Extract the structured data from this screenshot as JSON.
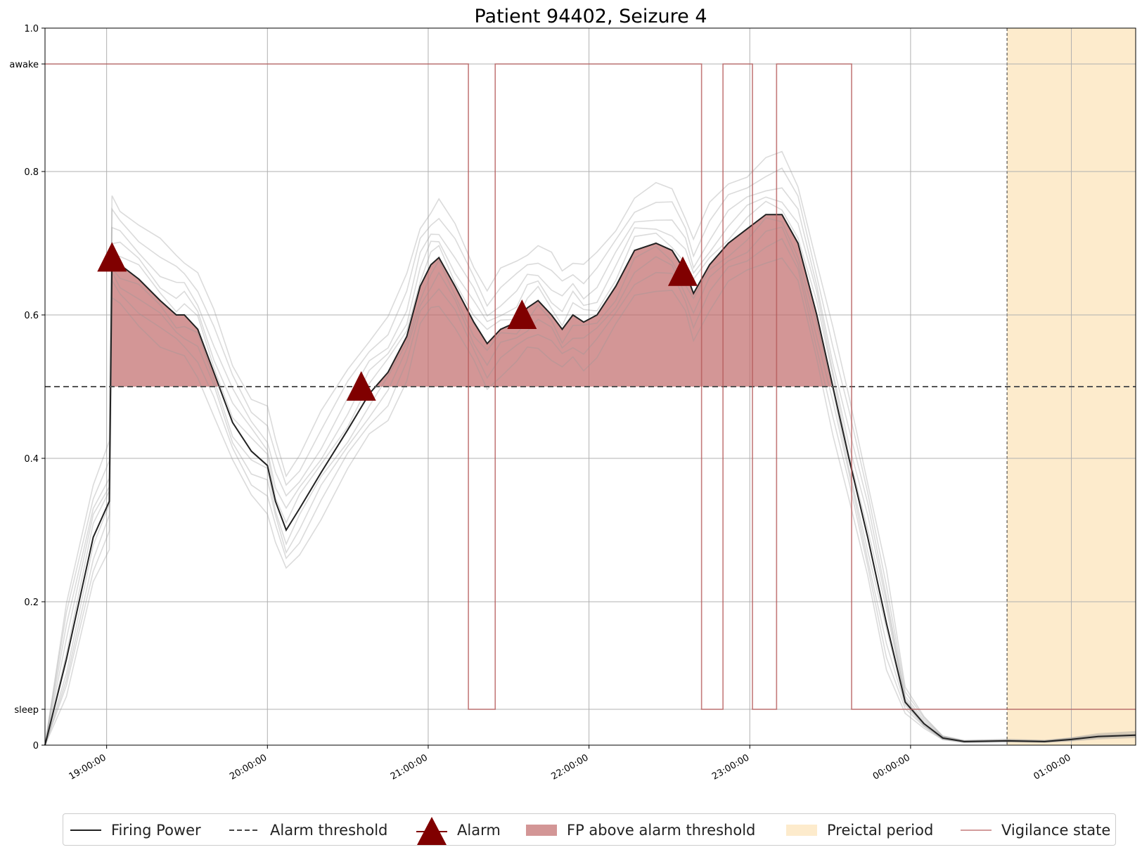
{
  "chart_data": {
    "type": "line",
    "title": "Patient 94402, Seizure 4",
    "xlabel": "",
    "ylabel": "",
    "x_start": "18:37:00",
    "x_end": "01:24:00",
    "x_ticks": [
      "19:00:00",
      "20:00:00",
      "21:00:00",
      "22:00:00",
      "23:00:00",
      "00:00:00",
      "01:00:00"
    ],
    "ylim": [
      0,
      1.0
    ],
    "y_ticks": [
      {
        "value": 0,
        "label": "0"
      },
      {
        "value": 0.2,
        "label": "0.2"
      },
      {
        "value": 0.4,
        "label": "0.4"
      },
      {
        "value": 0.6,
        "label": "0.6"
      },
      {
        "value": 0.8,
        "label": "0.8"
      },
      {
        "value": 1.0,
        "label": "1.0"
      }
    ],
    "y_state_labels": [
      {
        "value": 0.95,
        "label": "awake"
      },
      {
        "value": 0.05,
        "label": "sleep"
      }
    ],
    "grid": true,
    "legend_position": "bottom",
    "alarm_threshold": 0.5,
    "preictal_period": {
      "start": "00:36:00",
      "end": "01:24:00"
    },
    "firing_power": [
      [
        "18:37:00",
        0.0
      ],
      [
        "18:45:00",
        0.12
      ],
      [
        "18:55:00",
        0.29
      ],
      [
        "19:01:00",
        0.34
      ],
      [
        "19:02:00",
        0.68
      ],
      [
        "19:05:00",
        0.67
      ],
      [
        "19:12:00",
        0.65
      ],
      [
        "19:20:00",
        0.62
      ],
      [
        "19:26:00",
        0.6
      ],
      [
        "19:29:00",
        0.6
      ],
      [
        "19:34:00",
        0.58
      ],
      [
        "19:40:00",
        0.52
      ],
      [
        "19:47:00",
        0.45
      ],
      [
        "19:54:00",
        0.41
      ],
      [
        "20:00:00",
        0.39
      ],
      [
        "20:03:00",
        0.34
      ],
      [
        "20:07:00",
        0.3
      ],
      [
        "20:12:00",
        0.33
      ],
      [
        "20:20:00",
        0.38
      ],
      [
        "20:30:00",
        0.44
      ],
      [
        "20:38:00",
        0.49
      ],
      [
        "20:45:00",
        0.52
      ],
      [
        "20:52:00",
        0.57
      ],
      [
        "20:57:00",
        0.64
      ],
      [
        "21:01:00",
        0.67
      ],
      [
        "21:04:00",
        0.68
      ],
      [
        "21:10:00",
        0.64
      ],
      [
        "21:17:00",
        0.59
      ],
      [
        "21:22:00",
        0.56
      ],
      [
        "21:27:00",
        0.58
      ],
      [
        "21:33:00",
        0.59
      ],
      [
        "21:37:00",
        0.61
      ],
      [
        "21:41:00",
        0.62
      ],
      [
        "21:46:00",
        0.6
      ],
      [
        "21:50:00",
        0.58
      ],
      [
        "21:54:00",
        0.6
      ],
      [
        "21:58:00",
        0.59
      ],
      [
        "22:03:00",
        0.6
      ],
      [
        "22:10:00",
        0.64
      ],
      [
        "22:17:00",
        0.69
      ],
      [
        "22:25:00",
        0.7
      ],
      [
        "22:31:00",
        0.69
      ],
      [
        "22:36:00",
        0.66
      ],
      [
        "22:39:00",
        0.63
      ],
      [
        "22:45:00",
        0.67
      ],
      [
        "22:52:00",
        0.7
      ],
      [
        "22:59:00",
        0.72
      ],
      [
        "23:06:00",
        0.74
      ],
      [
        "23:12:00",
        0.74
      ],
      [
        "23:18:00",
        0.7
      ],
      [
        "23:25:00",
        0.6
      ],
      [
        "23:31:00",
        0.5
      ],
      [
        "23:37:00",
        0.4
      ],
      [
        "23:44:00",
        0.29
      ],
      [
        "23:51:00",
        0.17
      ],
      [
        "23:58:00",
        0.06
      ],
      [
        "00:05:00",
        0.03
      ],
      [
        "00:12:00",
        0.01
      ],
      [
        "00:20:00",
        0.005
      ],
      [
        "00:36:00",
        0.006
      ],
      [
        "00:50:00",
        0.005
      ],
      [
        "01:00:00",
        0.008
      ],
      [
        "01:10:00",
        0.012
      ],
      [
        "01:24:00",
        0.014
      ]
    ],
    "alarms": [
      {
        "time": "19:02:00",
        "value": 0.68
      },
      {
        "time": "20:35:00",
        "value": 0.5
      },
      {
        "time": "21:35:00",
        "value": 0.6
      },
      {
        "time": "22:35:00",
        "value": 0.66
      }
    ],
    "vigilance_state": [
      [
        "18:37:00",
        "awake"
      ],
      [
        "21:15:00",
        "sleep"
      ],
      [
        "21:25:00",
        "awake"
      ],
      [
        "22:42:00",
        "sleep"
      ],
      [
        "22:50:00",
        "awake"
      ],
      [
        "23:01:00",
        "sleep"
      ],
      [
        "23:10:00",
        "awake"
      ],
      [
        "23:38:00",
        "sleep"
      ],
      [
        "01:24:00",
        "sleep"
      ]
    ],
    "colors": {
      "firing_power": "#222222",
      "firing_power_runs": "#999999",
      "threshold": "#555555",
      "alarm": "#800000",
      "fp_fill": "#c06a6a",
      "preictal": "#fdebcc",
      "vigilance": "#b55a5a",
      "grid": "#b0b0b0"
    }
  },
  "legend": {
    "firing_power": "Firing Power",
    "alarm_threshold": "Alarm threshold",
    "alarm": "Alarm",
    "fp_above": "FP above alarm threshold",
    "preictal": "Preictal period",
    "vigilance": "Vigilance state"
  }
}
